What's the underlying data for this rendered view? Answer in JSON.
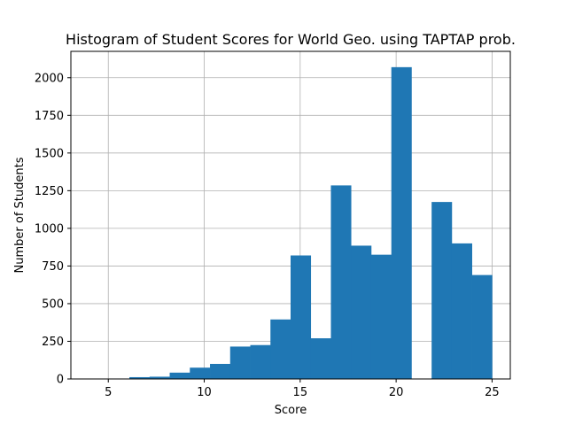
{
  "chart_data": {
    "type": "bar",
    "title": "Histogram of Student Scores for World Geo. using TAPTAP prob.",
    "xlabel": "Score",
    "ylabel": "Number of Students",
    "xlim": [
      3.05,
      25.95
    ],
    "ylim": [
      0,
      2175
    ],
    "grid": true,
    "bar_color": "#1f77b4",
    "bin_edges": [
      4.0,
      5.05,
      6.1,
      7.15,
      8.2,
      9.25,
      10.3,
      11.35,
      12.4,
      13.45,
      14.5,
      15.55,
      16.6,
      17.65,
      18.7,
      19.75,
      20.8,
      21.85,
      22.9,
      23.95,
      25.0
    ],
    "values": [
      1,
      3,
      12,
      15,
      42,
      75,
      100,
      215,
      225,
      395,
      820,
      270,
      1285,
      885,
      825,
      2070,
      0,
      1175,
      900,
      690
    ],
    "xticks": [
      5,
      10,
      15,
      20,
      25
    ],
    "yticks": [
      0,
      250,
      500,
      750,
      1000,
      1250,
      1500,
      1750,
      2000
    ]
  }
}
